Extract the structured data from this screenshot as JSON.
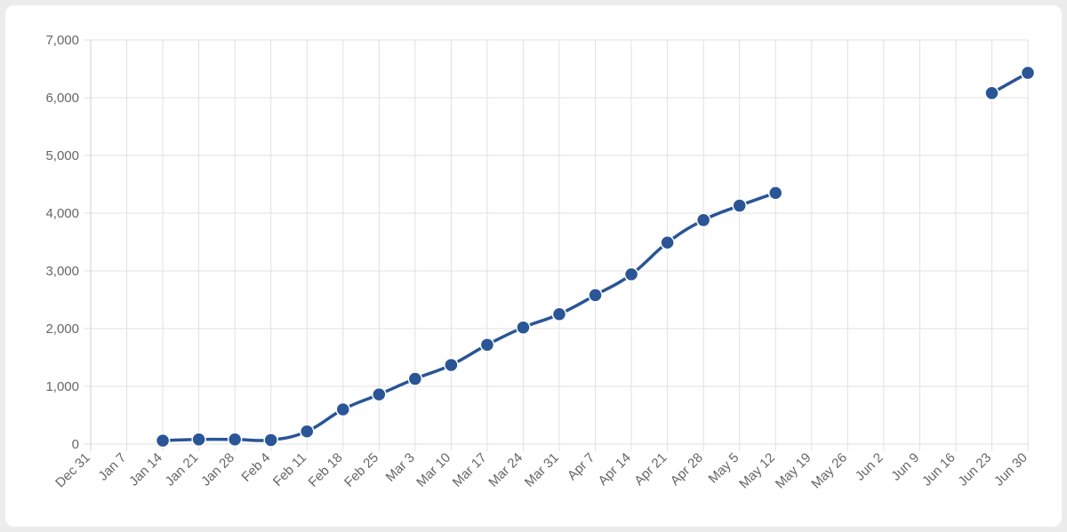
{
  "chart_data": {
    "type": "line",
    "title": "",
    "xlabel": "",
    "ylabel": "",
    "x_tick_labels": [
      "Dec 31",
      "Jan 7",
      "Jan 14",
      "Jan 21",
      "Jan 28",
      "Feb 4",
      "Feb 11",
      "Feb 18",
      "Feb 25",
      "Mar 3",
      "Mar 10",
      "Mar 17",
      "Mar 24",
      "Mar 31",
      "Apr 7",
      "Apr 14",
      "Apr 21",
      "Apr 28",
      "May 5",
      "May 12",
      "May 19",
      "May 26",
      "Jun 2",
      "Jun 9",
      "Jun 16",
      "Jun 23",
      "Jun 30"
    ],
    "y_tick_labels": [
      "0",
      "1,000",
      "2,000",
      "3,000",
      "4,000",
      "5,000",
      "6,000",
      "7,000"
    ],
    "ylim": [
      0,
      7000
    ],
    "grid": true,
    "legend": "none",
    "series_color": "#2a5597",
    "series": [
      {
        "values": [
          null,
          null,
          60,
          80,
          80,
          70,
          220,
          600,
          860,
          1130,
          1370,
          1720,
          2020,
          2250,
          2580,
          2940,
          3490,
          3880,
          4130,
          4350,
          null,
          null,
          null,
          null,
          null,
          6080,
          6430
        ]
      }
    ]
  }
}
